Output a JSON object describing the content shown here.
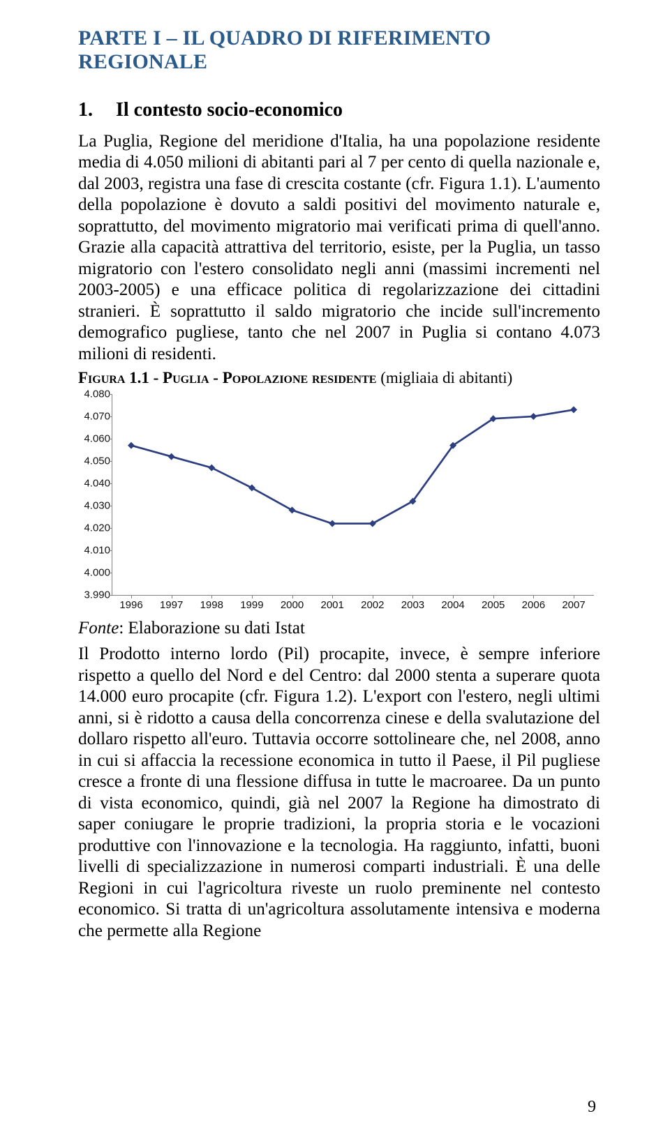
{
  "title": "PARTE I – IL QUADRO DI RIFERIMENTO REGIONALE",
  "section": {
    "num": "1.",
    "label": "Il contesto socio-economico"
  },
  "para1": "La Puglia, Regione del meridione d'Italia, ha una popolazione residente media di 4.050 milioni di abitanti pari al 7 per cento di quella nazionale e, dal 2003, registra una fase di crescita costante (cfr. Figura 1.1). L'aumento della popolazione è dovuto a saldi positivi del movimento naturale e, soprattutto, del movimento migratorio mai verificati prima di quell'anno. Grazie alla capacità attrattiva del territorio, esiste, per la Puglia, un tasso migratorio con l'estero consolidato negli anni (massimi incrementi nel 2003-2005) e una efficace politica di regolarizzazione dei cittadini stranieri. È soprattutto il saldo migratorio che incide sull'incremento demografico pugliese, tanto che nel 2007 in Puglia si contano 4.073 milioni di residenti.",
  "fig_caption_a": "Figura 1.1 -  ",
  "fig_caption_b": "Puglia - Popolazione residente",
  "fig_caption_c": " (migliaia di abitanti)",
  "chart": {
    "type": "line",
    "ylim": [
      3.99,
      4.08
    ],
    "ytick_step": 0.01,
    "ylabels": [
      "3.990",
      "4.000",
      "4.010",
      "4.020",
      "4.030",
      "4.040",
      "4.050",
      "4.060",
      "4.070",
      "4.080"
    ],
    "xlabels": [
      "1996",
      "1997",
      "1998",
      "1999",
      "2000",
      "2001",
      "2002",
      "2003",
      "2004",
      "2005",
      "2006",
      "2007"
    ],
    "values": [
      4.057,
      4.052,
      4.047,
      4.038,
      4.028,
      4.022,
      4.022,
      4.032,
      4.057,
      4.069,
      4.07,
      4.073
    ],
    "line_color": "#2c3e80",
    "marker_color": "#2c3e80",
    "marker": "diamond",
    "marker_size": 10,
    "axis_color": "#808080",
    "background_color": "#ffffff",
    "font_family": "Arial",
    "tick_fontsize": 15
  },
  "fonte_label": "Fonte",
  "fonte_text": ": Elaborazione su dati Istat",
  "para2": "Il Prodotto interno lordo (Pil) procapite, invece, è sempre inferiore rispetto a quello del Nord e del Centro: dal 2000 stenta a superare quota 14.000 euro procapite (cfr. Figura 1.2). L'export con l'estero, negli ultimi anni, si è ridotto a causa della concorrenza cinese e della svalutazione del dollaro rispetto all'euro. Tuttavia occorre sottolineare che, nel 2008, anno in cui si affaccia la recessione economica in tutto il Paese, il Pil pugliese cresce a fronte di una flessione diffusa in tutte le macroaree. Da un punto di vista economico, quindi, già nel 2007 la Regione ha dimostrato di saper coniugare le proprie tradizioni, la propria storia e le vocazioni produttive con l'innovazione e la tecnologia. Ha raggiunto, infatti, buoni livelli di specializzazione in numerosi comparti industriali. È una delle Regioni in cui l'agricoltura riveste un ruolo preminente nel contesto economico. Si tratta di un'agricoltura assolutamente intensiva e moderna che permette alla Regione",
  "page_number": "9"
}
